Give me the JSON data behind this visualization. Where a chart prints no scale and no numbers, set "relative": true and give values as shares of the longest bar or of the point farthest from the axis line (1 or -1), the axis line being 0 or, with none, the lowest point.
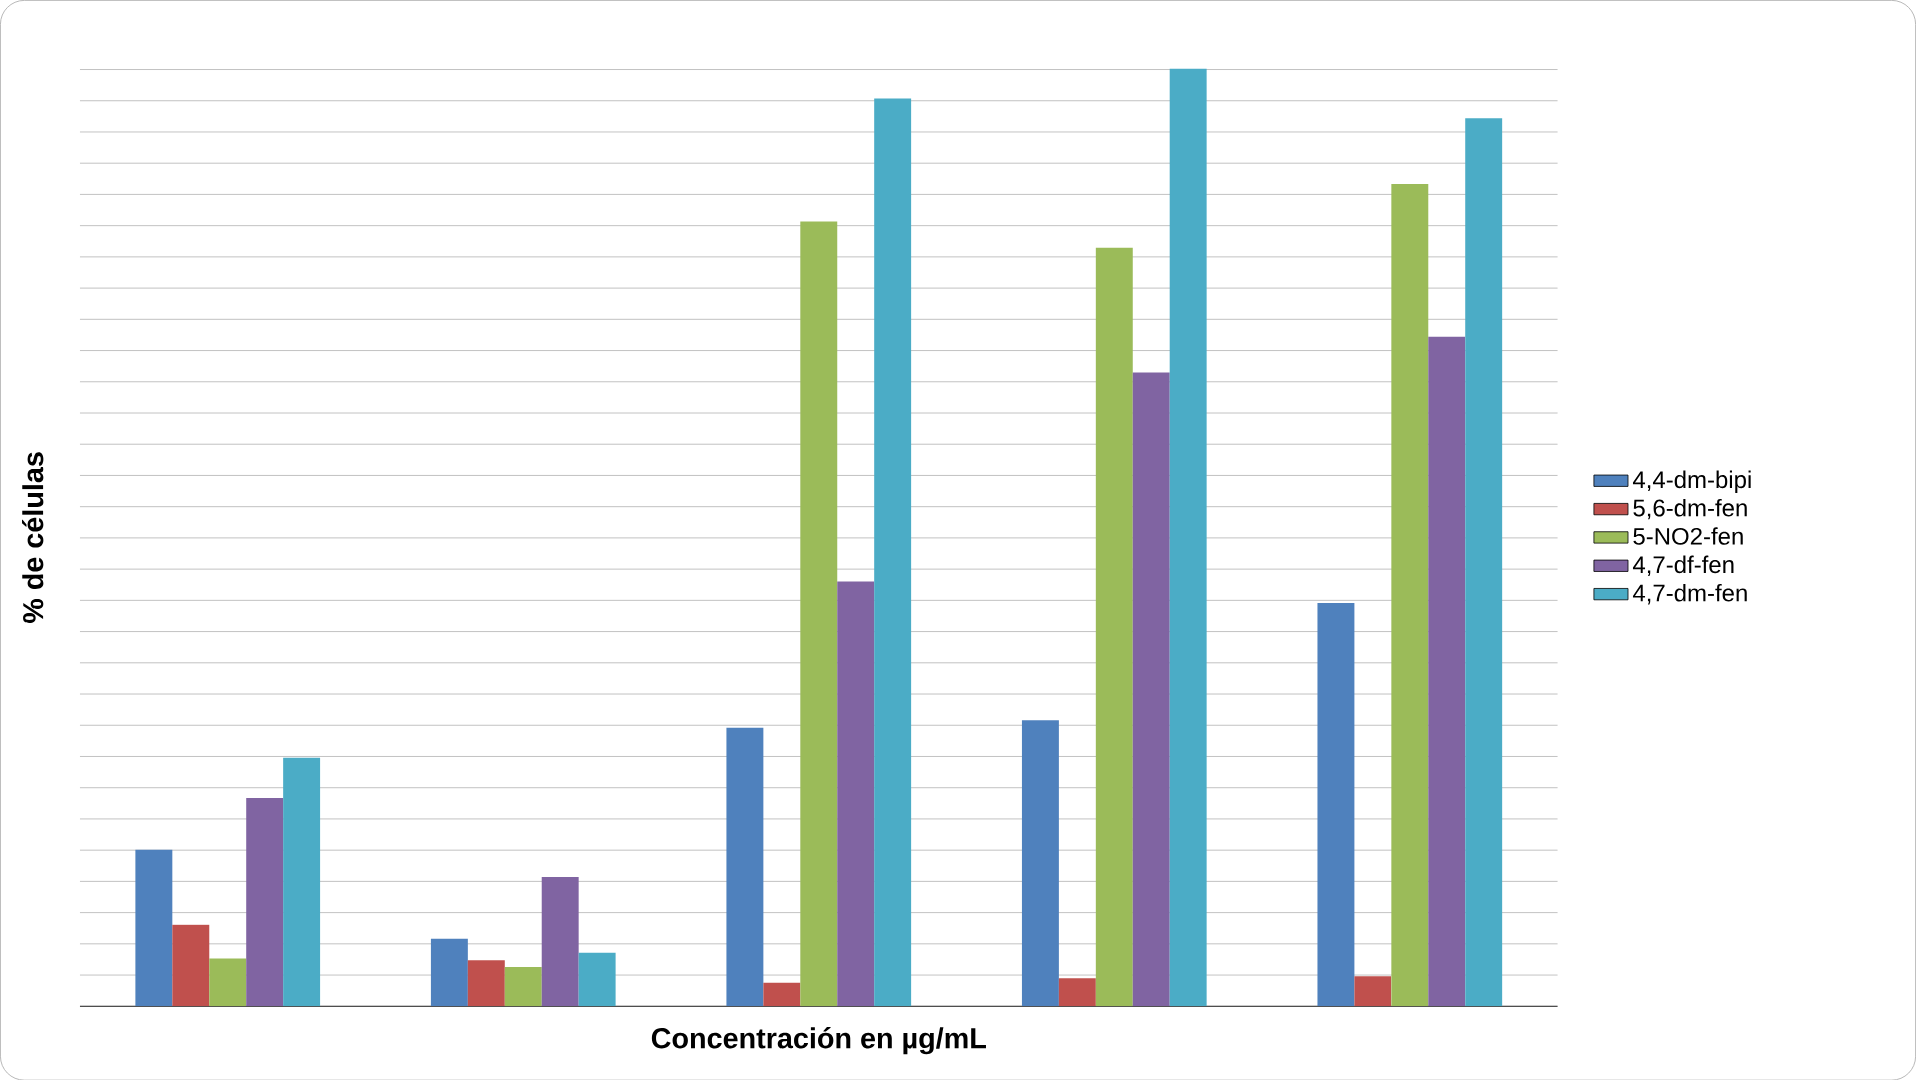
{
  "chart_data": {
    "type": "bar",
    "relative": true,
    "xlabel": "Concentración en µg/mL",
    "ylabel": "% de células",
    "categories": [
      null,
      null,
      null,
      null,
      null
    ],
    "grid": "y",
    "legend": "right",
    "series": [
      {
        "name": "4,4-dm-bipi",
        "color": "#4f81bd",
        "values": [
          0.167,
          0.072,
          0.297,
          0.305,
          0.43
        ]
      },
      {
        "name": "5,6-dm-fen",
        "color": "#c0504d",
        "values": [
          0.087,
          0.049,
          0.025,
          0.03,
          0.032
        ]
      },
      {
        "name": "5-NO2-fen",
        "color": "#9bbb59",
        "values": [
          0.051,
          0.042,
          0.837,
          0.809,
          0.877
        ]
      },
      {
        "name": "4,7-df-fen",
        "color": "#8064a2",
        "values": [
          0.222,
          0.138,
          0.453,
          0.676,
          0.714
        ]
      },
      {
        "name": "4,7-dm-fen",
        "color": "#4bacc6",
        "values": [
          0.265,
          0.057,
          0.968,
          1.0,
          0.947
        ]
      }
    ]
  }
}
